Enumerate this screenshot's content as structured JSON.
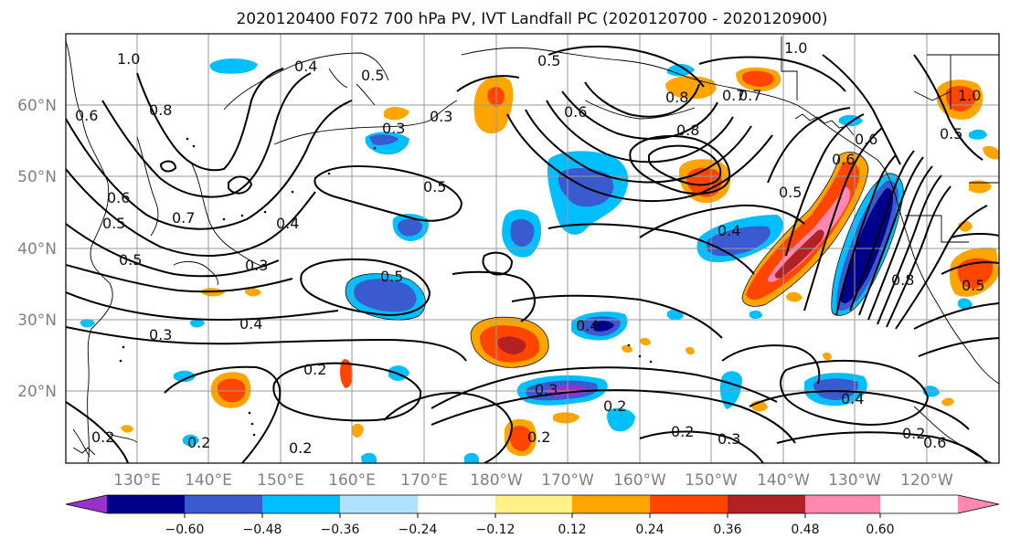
{
  "title": "2020120400 F072 700 hPa PV, IVT Landfall PC (2020120700 - 2020120900)",
  "lat_labels": [
    "60°N",
    "50°N",
    "40°N",
    "30°N",
    "20°N"
  ],
  "lon_labels": [
    "130°E",
    "140°E",
    "150°E",
    "160°E",
    "170°E",
    "180°W",
    "170°W",
    "160°W",
    "150°W",
    "140°W",
    "130°W",
    "120°W"
  ],
  "colorbar": {
    "tick_labels": [
      "−0.60",
      "−0.48",
      "−0.36",
      "−0.24",
      "−0.12",
      "0.12",
      "0.24",
      "0.36",
      "0.48",
      "0.60"
    ],
    "colors": [
      "#9932cc",
      "#00008b",
      "#3a5bd0",
      "#00bfff",
      "#b0e2ff",
      "#ffffff",
      "#fff08a",
      "#ffa500",
      "#ff4500",
      "#b22222",
      "#ff88b0"
    ]
  },
  "contour_labels": [
    "0.4",
    "0.5",
    "0.8",
    "1.0",
    "0.6",
    "0.7",
    "0.3",
    "0.5",
    "0.6",
    "0.5",
    "0.8",
    "0.7",
    "0.6",
    "0.5",
    "0.3",
    "0.4",
    "0.5",
    "0.2",
    "0.3",
    "0.4",
    "0.2",
    "0.2",
    "0.2",
    "0.2",
    "0.3",
    "0.4",
    "0.2",
    "0.3",
    "0.2",
    "0.4",
    "0.5",
    "0.8",
    "1.0",
    "0.6",
    "0.5",
    "0.6",
    "0.5",
    "0.4",
    "0.5",
    "0.3",
    "0.2",
    "0.8",
    "0.7",
    "1.0",
    "0.6"
  ],
  "chart_data": {
    "type": "map",
    "title": "2020120400 F072 700 hPa PV, IVT Landfall PC (2020120700 - 2020120900)",
    "lon_ticks": [
      "130°E",
      "140°E",
      "150°E",
      "160°E",
      "170°E",
      "180°W",
      "170°W",
      "160°W",
      "150°W",
      "140°W",
      "130°W",
      "120°W"
    ],
    "lat_ticks": [
      "60°N",
      "50°N",
      "40°N",
      "30°N",
      "20°N"
    ],
    "lon_range_deg_east": [
      120,
      250
    ],
    "lat_range_deg": [
      10,
      70
    ],
    "grid": true,
    "fill_levels": [
      -0.6,
      -0.48,
      -0.36,
      -0.24,
      -0.12,
      0.12,
      0.24,
      0.36,
      0.48,
      0.6
    ],
    "contour_levels": [
      0.2,
      0.3,
      0.4,
      0.5,
      0.6,
      0.7,
      0.8,
      1.0
    ],
    "colorbar_extend": "both"
  }
}
